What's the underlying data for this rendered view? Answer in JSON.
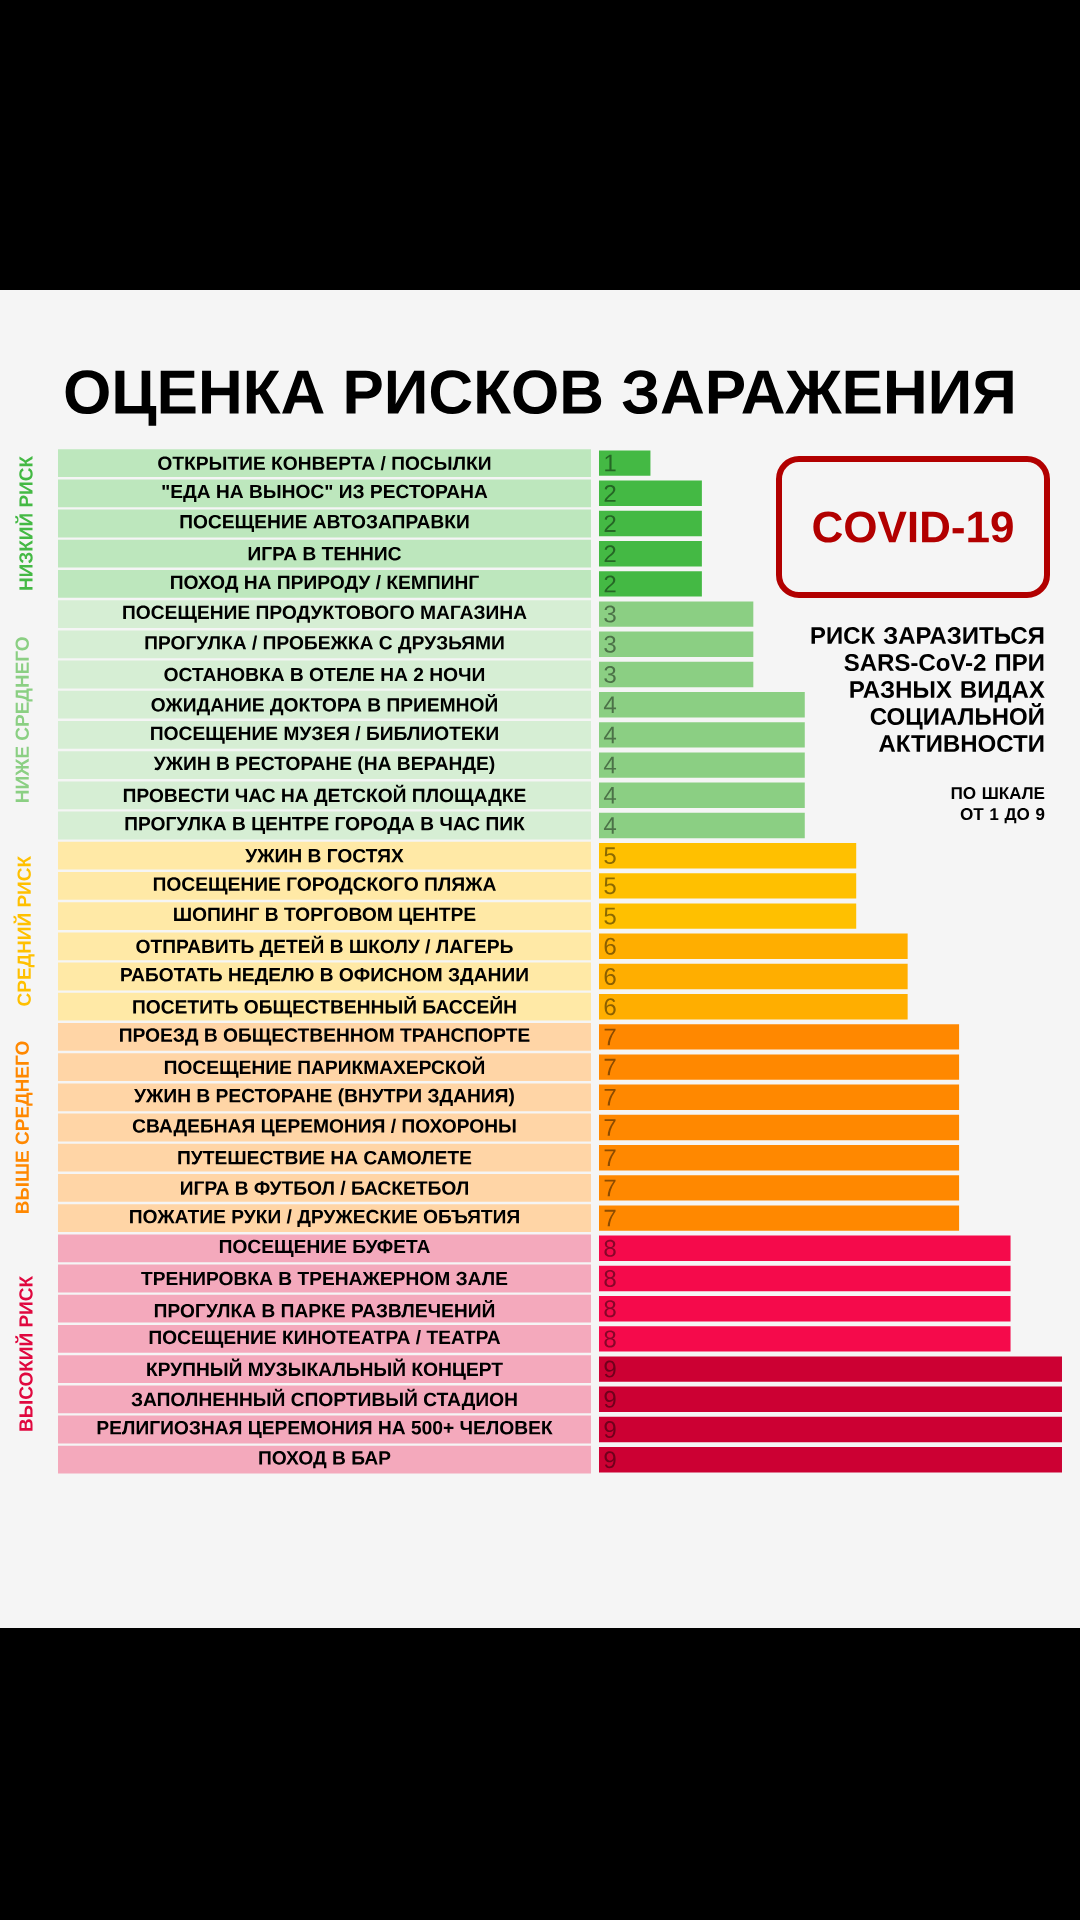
{
  "chart_data": {
    "type": "bar",
    "orientation": "horizontal",
    "title": "ОЦЕНКА РИСКОВ ЗАРАЖЕНИЯ",
    "subtitle": "COVID-19",
    "annotations": [
      "РИСК ЗАРАЗИТЬСЯ SARS-CoV-2 ПРИ РАЗНЫХ ВИДАХ СОЦИАЛЬНОЙ АКТИВНОСТИ",
      "ПО ШКАЛЕ ОТ 1 ДО 9"
    ],
    "categories": [
      "ОТКРЫТИЕ КОНВЕРТА / ПОСЫЛКИ",
      "\"ЕДА НА ВЫНОС\" ИЗ РЕСТОРАНА",
      "ПОСЕЩЕНИЕ АВТОЗАПРАВКИ",
      "ИГРА В ТЕННИС",
      "ПОХОД НА ПРИРОДУ / КЕМПИНГ",
      "ПОСЕЩЕНИЕ ПРОДУКТОВОГО МАГАЗИНА",
      "ПРОГУЛКА / ПРОБЕЖКА С ДРУЗЬЯМИ",
      "ОСТАНОВКА В ОТЕЛЕ НА 2 НОЧИ",
      "ОЖИДАНИЕ ДОКТОРА В ПРИЕМНОЙ",
      "ПОСЕЩЕНИЕ МУЗЕЯ / БИБЛИОТЕКИ",
      "УЖИН В РЕСТОРАНЕ (НА ВЕРАНДЕ)",
      "ПРОВЕСТИ ЧАС НА ДЕТСКОЙ ПЛОЩАДКЕ",
      "ПРОГУЛКА В ЦЕНТРЕ ГОРОДА В ЧАС ПИК",
      "УЖИН В ГОСТЯХ",
      "ПОСЕЩЕНИЕ ГОРОДСКОГО ПЛЯЖА",
      "ШОПИНГ В ТОРГОВОМ ЦЕНТРЕ",
      "ОТПРАВИТЬ ДЕТЕЙ В ШКОЛУ / ЛАГЕРЬ",
      "РАБОТАТЬ НЕДЕЛЮ В ОФИСНОМ ЗДАНИИ",
      "ПОСЕТИТЬ ОБЩЕСТВЕННЫЙ БАССЕЙН",
      "ПРОЕЗД В ОБЩЕСТВЕННОМ ТРАНСПОРТЕ",
      "ПОСЕЩЕНИЕ ПАРИКМАХЕРСКОЙ",
      "УЖИН В РЕСТОРАНЕ (ВНУТРИ ЗДАНИЯ)",
      "СВАДЕБНАЯ ЦЕРЕМОНИЯ / ПОХОРОНЫ",
      "ПУТЕШЕСТВИЕ НА САМОЛЕТЕ",
      "ИГРА В ФУТБОЛ / БАСКЕТБОЛ",
      "ПОЖАТИЕ РУКИ / ДРУЖЕСКИЕ ОБЪЯТИЯ",
      "ПОСЕЩЕНИЕ БУФЕТА",
      "ТРЕНИРОВКА В ТРЕНАЖЕРНОМ ЗАЛЕ",
      "ПРОГУЛКА В ПАРКЕ РАЗВЛЕЧЕНИЙ",
      "ПОСЕЩЕНИЕ КИНОТЕАТРА / ТЕАТРА",
      "КРУПНЫЙ МУЗЫКАЛЬНЫЙ КОНЦЕРТ",
      "ЗАПОЛНЕННЫЙ СПОРТИВЫЙ СТАДИОН",
      "РЕЛИГИОЗНАЯ ЦЕРЕМОНИЯ НА 500+ ЧЕЛОВЕК",
      "ПОХОД В БАР"
    ],
    "series": [
      {
        "name": "НИЗКИЙ РИСК",
        "color": "#44b944",
        "values": [
          1,
          2,
          2,
          2,
          2,
          null,
          null,
          null,
          null,
          null,
          null,
          null,
          null,
          null,
          null,
          null,
          null,
          null,
          null,
          null,
          null,
          null,
          null,
          null,
          null,
          null,
          null,
          null,
          null,
          null,
          null,
          null,
          null,
          null
        ]
      },
      {
        "name": "НИЖЕ СРЕДНЕГО",
        "color": "#8bcf83",
        "values": [
          null,
          null,
          null,
          null,
          null,
          3,
          3,
          3,
          4,
          4,
          4,
          4,
          4,
          null,
          null,
          null,
          null,
          null,
          null,
          null,
          null,
          null,
          null,
          null,
          null,
          null,
          null,
          null,
          null,
          null,
          null,
          null,
          null,
          null
        ]
      },
      {
        "name": "СРЕДНИЙ РИСК",
        "color": "#ffc000",
        "colors": [
          null,
          null,
          null,
          null,
          null,
          null,
          null,
          null,
          null,
          null,
          null,
          null,
          null,
          "#ffc000",
          "#ffc000",
          "#ffc000",
          "#ffae00",
          "#ffae00",
          "#ffae00",
          null,
          null,
          null,
          null,
          null,
          null,
          null,
          null,
          null,
          null,
          null,
          null,
          null,
          null,
          null
        ],
        "values": [
          null,
          null,
          null,
          null,
          null,
          null,
          null,
          null,
          null,
          null,
          null,
          null,
          null,
          5,
          5,
          5,
          6,
          6,
          6,
          null,
          null,
          null,
          null,
          null,
          null,
          null,
          null,
          null,
          null,
          null,
          null,
          null,
          null,
          null
        ]
      },
      {
        "name": "ВЫШЕ СРЕДНЕГО",
        "color": "#ff8800",
        "values": [
          null,
          null,
          null,
          null,
          null,
          null,
          null,
          null,
          null,
          null,
          null,
          null,
          null,
          null,
          null,
          null,
          null,
          null,
          null,
          7,
          7,
          7,
          7,
          7,
          7,
          7,
          null,
          null,
          null,
          null,
          null,
          null,
          null,
          null
        ]
      },
      {
        "name": "ВЫСОКИЙ РИСК",
        "color": "#e0083f",
        "colors": [
          null,
          null,
          null,
          null,
          null,
          null,
          null,
          null,
          null,
          null,
          null,
          null,
          null,
          null,
          null,
          null,
          null,
          null,
          null,
          null,
          null,
          null,
          null,
          null,
          null,
          null,
          "#f50a4b",
          "#f50a4b",
          "#f50a4b",
          "#f50a4b",
          "#cc0033",
          "#cc0033",
          "#cc0033",
          "#cc0033"
        ],
        "values": [
          null,
          null,
          null,
          null,
          null,
          null,
          null,
          null,
          null,
          null,
          null,
          null,
          null,
          null,
          null,
          null,
          null,
          null,
          null,
          null,
          null,
          null,
          null,
          null,
          null,
          null,
          8,
          8,
          8,
          8,
          9,
          9,
          9,
          9
        ]
      }
    ],
    "xlim": [
      0,
      9
    ],
    "tick_labels": "y",
    "data_labels": true
  }
}
